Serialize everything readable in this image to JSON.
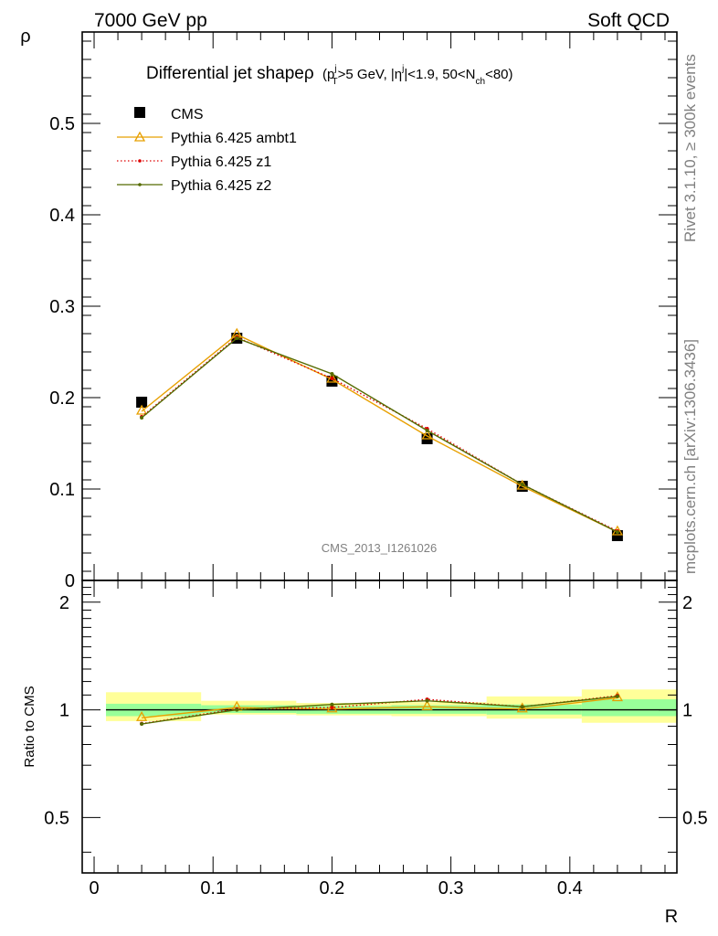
{
  "header": {
    "left": "7000 GeV pp",
    "right": "Soft QCD"
  },
  "side_labels": {
    "rivet": "Rivet 3.1.10, ≥ 300k events",
    "mcplots": "mcplots.cern.ch [arXiv:1306.3436]"
  },
  "watermark": "CMS_2013_I1261026",
  "chart_data": [
    {
      "type": "line",
      "title": "Differential jet shape ρ (p_T^j > 5 GeV, |η^j| < 1.9, 50 < N_ch < 80)",
      "title_parts": {
        "main": "Differential jet shape",
        "rho": "ρ",
        "open": "(p",
        "pt_sup": "j",
        "pt_sub": "T",
        "cut1": ">5 GeV, |η",
        "eta_sup": "j",
        "cut2": "|<1.9, 50<N",
        "nch_sub": "ch",
        "cut3": "<80)"
      },
      "xlabel": "R",
      "ylabel": "ρ",
      "xlim": [
        -0.01,
        0.49
      ],
      "ylim": [
        0,
        0.6
      ],
      "yticks": [
        0.1,
        0.2,
        0.3,
        0.4,
        0.5
      ],
      "ytick_labels": [
        "0.1",
        "0.2",
        "0.3",
        "0.4",
        "0.5"
      ],
      "y_zero_label": "0",
      "x_bins": [
        [
          0.0,
          0.08
        ],
        [
          0.08,
          0.16
        ],
        [
          0.16,
          0.24
        ],
        [
          0.24,
          0.32
        ],
        [
          0.32,
          0.4
        ],
        [
          0.4,
          0.48
        ]
      ],
      "legend_position": "top-left",
      "series": [
        {
          "name": "CMS",
          "style": "data",
          "color": "#000000",
          "marker": "square",
          "x": [
            0.04,
            0.12,
            0.2,
            0.28,
            0.36,
            0.44
          ],
          "y": [
            0.195,
            0.265,
            0.218,
            0.155,
            0.103,
            0.049
          ]
        },
        {
          "name": "Pythia 6.425 ambt1",
          "style": "solid",
          "color": "#e8a000",
          "marker": "open-triangle",
          "x": [
            0.04,
            0.12,
            0.2,
            0.28,
            0.36,
            0.44
          ],
          "y": [
            0.185,
            0.269,
            0.22,
            0.158,
            0.103,
            0.053
          ]
        },
        {
          "name": "Pythia 6.425 z1",
          "style": "dotted",
          "color": "#dd0000",
          "marker": "dot",
          "x": [
            0.04,
            0.12,
            0.2,
            0.28,
            0.36,
            0.44
          ],
          "y": [
            0.179,
            0.266,
            0.221,
            0.166,
            0.105,
            0.054
          ]
        },
        {
          "name": "Pythia 6.425 z2",
          "style": "solid",
          "color": "#556b00",
          "marker": "dot",
          "x": [
            0.04,
            0.12,
            0.2,
            0.28,
            0.36,
            0.44
          ],
          "y": [
            0.178,
            0.265,
            0.226,
            0.164,
            0.105,
            0.053
          ]
        }
      ]
    },
    {
      "type": "line",
      "ylabel": "Ratio to CMS",
      "xlabel": "R",
      "xlim": [
        -0.01,
        0.49
      ],
      "ylim": [
        0.35,
        2.3
      ],
      "yticks": [
        0.5,
        1,
        2
      ],
      "ytick_labels": [
        "0.5",
        "1",
        "2"
      ],
      "xticks": [
        0,
        0.1,
        0.2,
        0.3,
        0.4
      ],
      "xtick_labels": [
        "0",
        "0.1",
        "0.2",
        "0.3",
        "0.4"
      ],
      "bands": [
        {
          "x0": 0.0,
          "x1": 0.08,
          "inner": [
            0.96,
            1.04
          ],
          "outer": [
            0.93,
            1.12
          ]
        },
        {
          "x0": 0.08,
          "x1": 0.16,
          "inner": [
            0.98,
            1.03
          ],
          "outer": [
            0.97,
            1.06
          ]
        },
        {
          "x0": 0.16,
          "x1": 0.24,
          "inner": [
            0.975,
            1.025
          ],
          "outer": [
            0.965,
            1.045
          ]
        },
        {
          "x0": 0.24,
          "x1": 0.32,
          "inner": [
            0.975,
            1.03
          ],
          "outer": [
            0.96,
            1.05
          ]
        },
        {
          "x0": 0.32,
          "x1": 0.4,
          "inner": [
            0.97,
            1.035
          ],
          "outer": [
            0.945,
            1.09
          ]
        },
        {
          "x0": 0.4,
          "x1": 0.48,
          "inner": [
            0.96,
            1.07
          ],
          "outer": [
            0.92,
            1.14
          ]
        }
      ],
      "series": [
        {
          "name": "Pythia 6.425 ambt1",
          "style": "solid",
          "color": "#e8a000",
          "marker": "open-triangle",
          "x": [
            0.04,
            0.12,
            0.2,
            0.28,
            0.36,
            0.44
          ],
          "y": [
            0.95,
            1.015,
            1.005,
            1.02,
            1.005,
            1.08
          ]
        },
        {
          "name": "Pythia 6.425 z1",
          "style": "dotted",
          "color": "#dd0000",
          "marker": "dot",
          "x": [
            0.04,
            0.12,
            0.2,
            0.28,
            0.36,
            0.44
          ],
          "y": [
            0.915,
            1.005,
            1.015,
            1.07,
            1.02,
            1.095
          ]
        },
        {
          "name": "Pythia 6.425 z2",
          "style": "solid",
          "color": "#556b00",
          "marker": "dot",
          "x": [
            0.04,
            0.12,
            0.2,
            0.28,
            0.36,
            0.44
          ],
          "y": [
            0.913,
            1.0,
            1.035,
            1.06,
            1.02,
            1.09
          ]
        }
      ]
    }
  ],
  "colors": {
    "band_inner": "#99ff99",
    "band_outer": "#ffff99",
    "text_grey": "#808080"
  }
}
